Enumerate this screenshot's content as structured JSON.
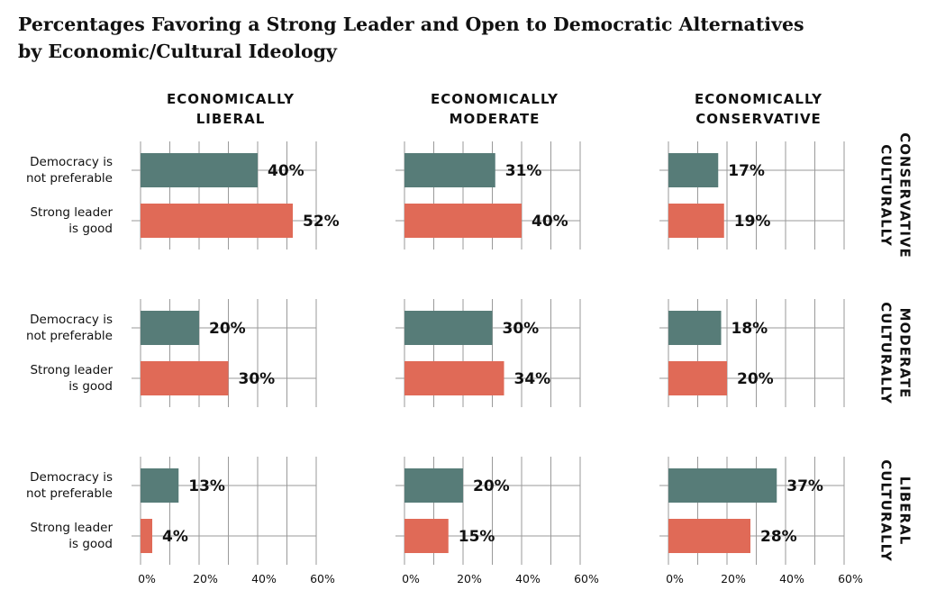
{
  "title": {
    "line1": "Percentages Favoring a Strong Leader and Open to Democratic Alternatives",
    "line2": "by Economic/Cultural Ideology"
  },
  "colors": {
    "democracy_not_preferable": "#577c78",
    "strong_leader_good": "#e06a57",
    "grid": "#9a9a9a"
  },
  "chart_data": {
    "type": "bar",
    "orientation": "horizontal",
    "xlim": [
      0,
      60
    ],
    "x_ticks": [
      "0%",
      "20%",
      "40%",
      "60%"
    ],
    "grid": true,
    "categories": [
      "Democracy is not preferable",
      "Strong leader is good"
    ],
    "category_lines": [
      [
        "Democracy is",
        "not preferable"
      ],
      [
        "Strong leader",
        "is good"
      ]
    ],
    "columns": [
      [
        "ECONOMICALLY",
        "LIBERAL"
      ],
      [
        "ECONOMICALLY",
        "MODERATE"
      ],
      [
        "ECONOMICALLY",
        "CONSERVATIVE"
      ]
    ],
    "rows": [
      [
        "CULTURALLY",
        "CONSERVATIVE"
      ],
      [
        "CULTURALLY",
        "MODERATE"
      ],
      [
        "CULTURALLY",
        "LIBERAL"
      ]
    ],
    "panels": [
      [
        {
          "democracy_not_preferable": 40,
          "strong_leader_good": 52
        },
        {
          "democracy_not_preferable": 31,
          "strong_leader_good": 40
        },
        {
          "democracy_not_preferable": 17,
          "strong_leader_good": 19
        }
      ],
      [
        {
          "democracy_not_preferable": 20,
          "strong_leader_good": 30
        },
        {
          "democracy_not_preferable": 30,
          "strong_leader_good": 34
        },
        {
          "democracy_not_preferable": 18,
          "strong_leader_good": 20
        }
      ],
      [
        {
          "democracy_not_preferable": 13,
          "strong_leader_good": 4
        },
        {
          "democracy_not_preferable": 20,
          "strong_leader_good": 15
        },
        {
          "democracy_not_preferable": 37,
          "strong_leader_good": 28
        }
      ]
    ]
  }
}
